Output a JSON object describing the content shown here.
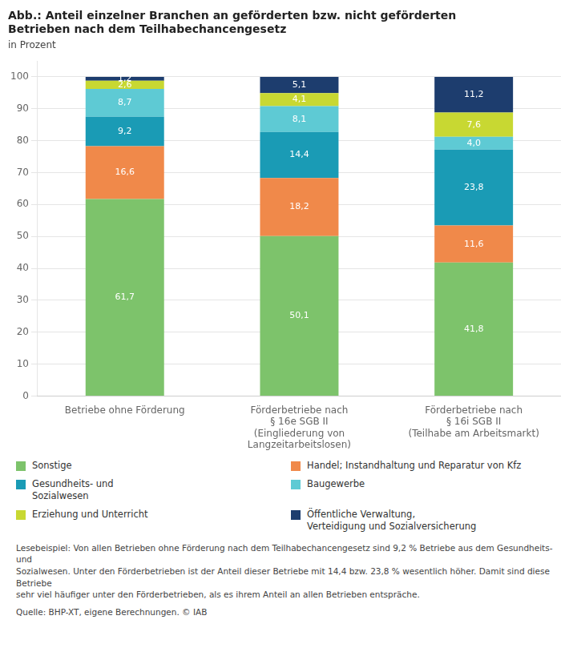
{
  "chart_data": {
    "type": "bar",
    "stacked": true,
    "title": "Abb.: Anteil einzelner Branchen an geförderten bzw. nicht geförderten\nBetrieben nach dem Teilhabechancengesetz",
    "subtitle": "in Prozent",
    "categories": [
      "Betriebe ohne Förderung",
      "Förderbetriebe nach\n§ 16e SGB II\n(Eingliederung von\nLangzeitarbeitslosen)",
      "Förderbetriebe nach\n§ 16i SGB II\n(Teilhabe am Arbeitsmarkt)"
    ],
    "series": [
      {
        "name": "Sonstige",
        "color": "#7dc36b",
        "values": [
          61.7,
          50.1,
          41.8
        ],
        "value_labels": [
          "61,7",
          "50,1",
          "41,8"
        ]
      },
      {
        "name": "Handel; Instandhaltung und Reparatur von Kfz",
        "color": "#f0894a",
        "values": [
          16.6,
          18.2,
          11.6
        ],
        "value_labels": [
          "16,6",
          "18,2",
          "11,6"
        ]
      },
      {
        "name": "Gesundheits- und\nSozialwesen",
        "color": "#1a9bb5",
        "values": [
          9.2,
          14.4,
          23.8
        ],
        "value_labels": [
          "9,2",
          "14,4",
          "23,8"
        ]
      },
      {
        "name": "Baugewerbe",
        "color": "#5ecad4",
        "values": [
          8.7,
          8.1,
          4.0
        ],
        "value_labels": [
          "8,7",
          "8,1",
          "4,0"
        ]
      },
      {
        "name": "Erziehung und Unterricht",
        "color": "#c8d832",
        "values": [
          2.6,
          4.1,
          7.6
        ],
        "value_labels": [
          "2,6",
          "4,1",
          "7,6"
        ]
      },
      {
        "name": "Öffentliche Verwaltung,\nVerteidigung und Sozialversicherung",
        "color": "#1d3d6e",
        "values": [
          1.2,
          5.1,
          11.2
        ],
        "value_labels": [
          "1,2",
          "5,1",
          "11,2"
        ]
      }
    ],
    "ylim": [
      0,
      105
    ],
    "yticks": [
      0,
      10,
      20,
      30,
      40,
      50,
      60,
      70,
      80,
      90,
      100
    ],
    "grid": true,
    "legend": "bottom",
    "data_labels": true,
    "footnote": "Lesebeispiel: Von allen Betrieben ohne Förderung nach dem Teilhabechancengesetz sind 9,2 % Betriebe aus dem Gesundheits- und\nSozialwesen. Unter den Förderbetrieben ist der Anteil dieser Betriebe mit 14,4 bzw. 23,8 % wesentlich höher. Damit sind diese Betriebe\nsehr viel häufiger unter den Förderbetrieben, als es ihrem Anteil an allen Betrieben entspräche.",
    "source": "Quelle: BHP-XT, eigene Berechnungen. © IAB"
  }
}
